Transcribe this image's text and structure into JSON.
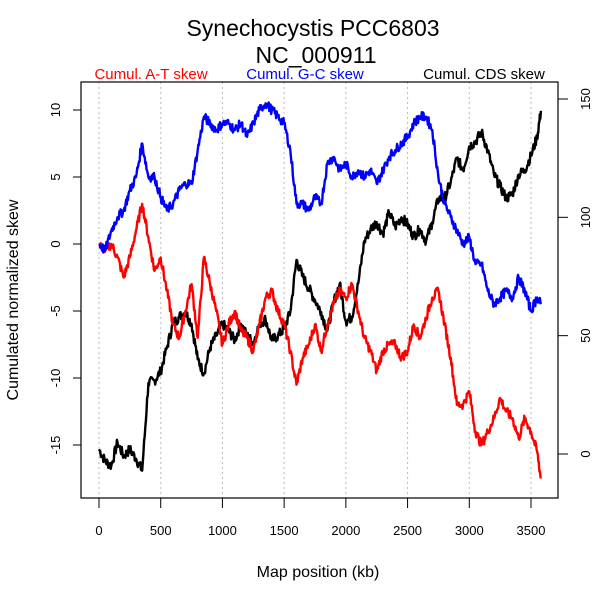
{
  "chart_data": {
    "type": "line",
    "title": "Synechocystis PCC6803",
    "subtitle": "NC_000911",
    "xlabel": "Map position (kb)",
    "ylabel": "Cumulated normalized skew",
    "xlim": [
      -150,
      3700
    ],
    "ylim_left": [
      -18.8,
      12.2
    ],
    "ylim_right": [
      -15,
      156
    ],
    "x_ticks": [
      "0",
      "500",
      "1000",
      "1500",
      "2000",
      "2500",
      "3000",
      "3500"
    ],
    "x_tick_values": [
      0,
      500,
      1000,
      1500,
      2000,
      2500,
      3000,
      3500
    ],
    "y_left_ticks": [
      "-15",
      "-10",
      "-5",
      "0",
      "5",
      "10"
    ],
    "y_left_tick_values": [
      -15,
      -10,
      -5,
      0,
      5,
      10
    ],
    "y_right_ticks": [
      "0",
      "50",
      "100",
      "150"
    ],
    "y_right_tick_values": [
      0,
      50,
      100,
      150
    ],
    "grid": "vertical dotted at x ticks",
    "legend_position": "top",
    "series": [
      {
        "name": "Cumul. A-T skew",
        "color": "#ff0000",
        "axis": "left",
        "x": [
          0,
          50,
          100,
          150,
          200,
          250,
          300,
          350,
          400,
          450,
          500,
          550,
          600,
          650,
          700,
          750,
          800,
          850,
          900,
          950,
          1000,
          1050,
          1100,
          1150,
          1200,
          1250,
          1300,
          1350,
          1400,
          1450,
          1500,
          1550,
          1600,
          1650,
          1700,
          1750,
          1800,
          1850,
          1900,
          1950,
          2000,
          2050,
          2100,
          2150,
          2200,
          2250,
          2300,
          2350,
          2400,
          2450,
          2500,
          2550,
          2600,
          2650,
          2700,
          2750,
          2800,
          2850,
          2900,
          2950,
          3000,
          3050,
          3100,
          3150,
          3200,
          3250,
          3300,
          3350,
          3400,
          3450,
          3500,
          3550,
          3580
        ],
        "y": [
          0,
          -0.5,
          0,
          -1,
          -2.5,
          -1,
          1,
          3,
          0.5,
          -2,
          -1,
          -3.5,
          -6,
          -7,
          -5,
          -3,
          -7,
          -1,
          -3,
          -5,
          -7.5,
          -6,
          -5,
          -6.5,
          -7,
          -8,
          -6,
          -4,
          -3.5,
          -5,
          -6,
          -8,
          -10.5,
          -8.5,
          -7.5,
          -6,
          -8,
          -6,
          -4.5,
          -3.5,
          -4,
          -3,
          -5,
          -7,
          -8,
          -9.5,
          -8,
          -7.5,
          -7.5,
          -8.5,
          -8,
          -6,
          -7,
          -5.5,
          -4,
          -3.5,
          -6,
          -8.5,
          -12,
          -12,
          -11,
          -14,
          -15,
          -14,
          -13,
          -11.5,
          -12.5,
          -13,
          -14.5,
          -13,
          -14,
          -15.5,
          -17.5
        ]
      },
      {
        "name": "Cumul. G-C skew",
        "color": "#0000ff",
        "axis": "left",
        "x": [
          0,
          50,
          100,
          150,
          200,
          250,
          300,
          350,
          400,
          450,
          500,
          550,
          600,
          650,
          700,
          750,
          800,
          850,
          900,
          950,
          1000,
          1050,
          1100,
          1150,
          1200,
          1250,
          1300,
          1350,
          1400,
          1450,
          1500,
          1550,
          1600,
          1650,
          1700,
          1750,
          1800,
          1850,
          1900,
          1950,
          2000,
          2050,
          2100,
          2150,
          2200,
          2250,
          2300,
          2350,
          2400,
          2450,
          2500,
          2550,
          2600,
          2650,
          2700,
          2750,
          2800,
          2850,
          2900,
          2950,
          3000,
          3050,
          3100,
          3150,
          3200,
          3250,
          3300,
          3350,
          3400,
          3450,
          3500,
          3550,
          3580
        ],
        "y": [
          0,
          -0.5,
          1,
          2,
          2.5,
          4,
          5,
          7.5,
          5,
          5,
          3.5,
          2.5,
          3,
          4,
          4.5,
          4.5,
          7,
          9.5,
          9,
          8.5,
          9,
          9,
          8.5,
          9,
          8,
          9,
          10,
          10.5,
          10,
          9.5,
          9,
          7,
          3,
          3,
          2.5,
          3.5,
          3,
          6,
          6.5,
          5.5,
          6,
          5,
          5.5,
          5,
          5.5,
          4.5,
          5.5,
          6.5,
          7,
          7.5,
          8,
          9,
          9.5,
          9.5,
          8.5,
          5,
          3,
          2,
          1,
          0,
          0.5,
          -1.5,
          -1.5,
          -3.5,
          -4.5,
          -4,
          -3.5,
          -4,
          -2.5,
          -3.5,
          -5,
          -4,
          -4.5
        ]
      },
      {
        "name": "Cumul. CDS skew",
        "color": "#000000",
        "axis": "right",
        "x": [
          0,
          50,
          100,
          150,
          200,
          250,
          300,
          350,
          400,
          450,
          500,
          550,
          600,
          650,
          700,
          750,
          800,
          850,
          900,
          950,
          1000,
          1050,
          1100,
          1150,
          1200,
          1250,
          1300,
          1350,
          1400,
          1450,
          1500,
          1550,
          1600,
          1650,
          1700,
          1750,
          1800,
          1850,
          1900,
          1950,
          2000,
          2050,
          2100,
          2150,
          2200,
          2250,
          2300,
          2350,
          2400,
          2450,
          2500,
          2550,
          2600,
          2650,
          2700,
          2750,
          2800,
          2850,
          2900,
          2950,
          3000,
          3050,
          3100,
          3150,
          3200,
          3250,
          3300,
          3350,
          3400,
          3450,
          3500,
          3550,
          3580
        ],
        "y": [
          2,
          -3,
          -5,
          5,
          -1,
          2,
          -2,
          -7,
          30,
          31,
          35,
          45,
          55,
          58,
          60,
          55,
          40,
          34,
          45,
          50,
          55,
          52,
          48,
          55,
          50,
          47,
          55,
          57,
          48,
          50,
          53,
          60,
          82,
          75,
          70,
          65,
          60,
          52,
          64,
          72,
          56,
          58,
          72,
          90,
          95,
          98,
          93,
          102,
          96,
          100,
          97,
          92,
          95,
          90,
          98,
          108,
          108,
          115,
          125,
          120,
          130,
          132,
          136,
          128,
          118,
          113,
          108,
          110,
          118,
          120,
          126,
          134,
          145
        ]
      }
    ]
  }
}
